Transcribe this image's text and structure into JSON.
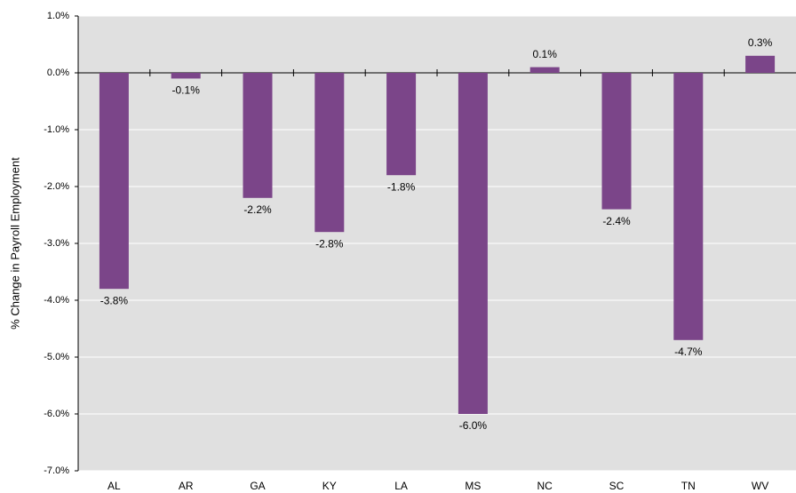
{
  "chart_data": {
    "type": "bar",
    "y_label": "% Change in Payroll Employment",
    "categories": [
      "AL",
      "AR",
      "GA",
      "KY",
      "LA",
      "MS",
      "NC",
      "SC",
      "TN",
      "WV"
    ],
    "values": [
      -3.8,
      -0.1,
      -2.2,
      -2.8,
      -1.8,
      -6.0,
      0.1,
      -2.4,
      -4.7,
      0.3
    ],
    "value_labels": [
      "-3.8%",
      "-0.1%",
      "-2.2%",
      "-2.8%",
      "-1.8%",
      "-6.0%",
      "0.1%",
      "-2.4%",
      "-4.7%",
      "0.3%"
    ],
    "color": "#7b4589",
    "ylim": [
      -7,
      1
    ],
    "yticks": [
      {
        "value": -7,
        "label": "-7.0%"
      },
      {
        "value": -6,
        "label": "-6.0%"
      },
      {
        "value": -5,
        "label": "-5.0%"
      },
      {
        "value": -4,
        "label": "-4.0%"
      },
      {
        "value": -3,
        "label": "-3.0%"
      },
      {
        "value": -2,
        "label": "-2.0%"
      },
      {
        "value": -1,
        "label": "-1.0%"
      },
      {
        "value": 0,
        "label": "0.0%"
      },
      {
        "value": 1,
        "label": "1.0%"
      }
    ],
    "grid": true
  }
}
